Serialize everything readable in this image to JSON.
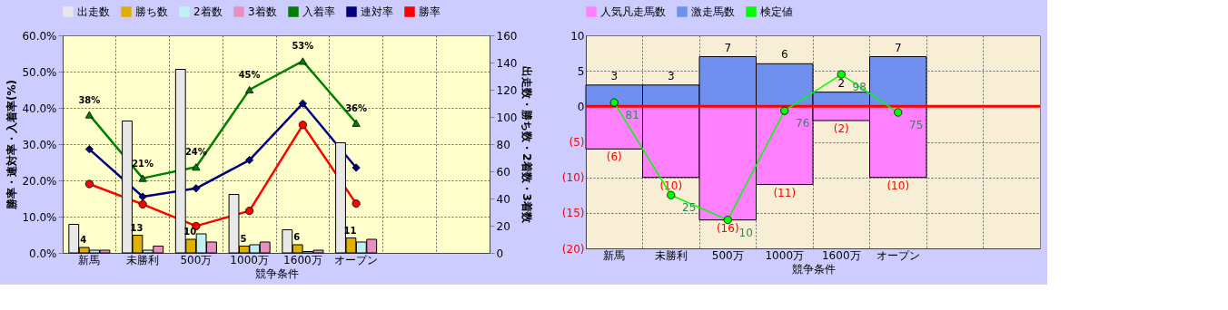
{
  "chart_data": [
    {
      "type": "bar",
      "categories": [
        "新馬",
        "未勝利",
        "500万",
        "1000万",
        "1600万",
        "オープン",
        null,
        null
      ],
      "xlabel": "競争条件",
      "ylabel": "勝率・連対率・入着率(%)",
      "y2label": "出走数・勝ち数・2着数・3着数",
      "ylim": [
        0,
        60
      ],
      "yticks": [
        {
          "value": 0,
          "label": "0.0%"
        },
        {
          "value": 10,
          "label": "10.0%"
        },
        {
          "value": 20,
          "label": "20.0%"
        },
        {
          "value": 30,
          "label": "30.0%"
        },
        {
          "value": 40,
          "label": "40.0%"
        },
        {
          "value": 50,
          "label": "50.0%"
        },
        {
          "value": 60,
          "label": "60.0%"
        }
      ],
      "y2lim": [
        0,
        160
      ],
      "y2ticks": [
        0,
        20,
        40,
        60,
        80,
        100,
        120,
        140,
        160
      ],
      "grid": true,
      "legend": "top",
      "series": [
        {
          "name": "出走数",
          "type": "bar",
          "axis": "y2",
          "color": "#e8e8e8",
          "values": [
            21,
            97,
            135,
            43,
            17,
            81,
            null,
            null
          ]
        },
        {
          "name": "勝ち数",
          "type": "bar",
          "axis": "y2",
          "color": "#e0b000",
          "values": [
            4,
            13,
            10,
            5,
            6,
            11,
            null,
            null
          ],
          "value_labels": [
            "4",
            "13",
            "10",
            "5",
            "6",
            "11",
            null,
            null
          ]
        },
        {
          "name": "2着数",
          "type": "bar",
          "axis": "y2",
          "color": "#c0f0f0",
          "values": [
            2,
            2,
            14,
            6,
            1,
            8,
            null,
            null
          ]
        },
        {
          "name": "3着数",
          "type": "bar",
          "axis": "y2",
          "color": "#e890c0",
          "values": [
            2,
            5,
            8,
            8,
            2,
            10,
            null,
            null
          ]
        },
        {
          "name": "入着率",
          "type": "line",
          "axis": "y",
          "color": "#008000",
          "marker": "triangle",
          "values": [
            38.1,
            20.6,
            23.7,
            45.0,
            52.9,
            35.8,
            null,
            null
          ],
          "value_labels": [
            "38%",
            "21%",
            "24%",
            "45%",
            "53%",
            "36%",
            null,
            null
          ]
        },
        {
          "name": "連対率",
          "type": "line",
          "axis": "y",
          "color": "#000080",
          "marker": "diamond",
          "values": [
            28.6,
            15.5,
            17.8,
            25.6,
            41.2,
            23.5,
            null,
            null
          ]
        },
        {
          "name": "勝率",
          "type": "line",
          "axis": "y",
          "color": "#ff0000",
          "marker": "circle",
          "values": [
            19.0,
            13.4,
            7.4,
            11.6,
            35.3,
            13.6,
            null,
            null
          ]
        }
      ]
    },
    {
      "type": "bar",
      "stacked": true,
      "categories": [
        "新馬",
        "未勝利",
        "500万",
        "1000万",
        "1600万",
        "オープン",
        null,
        null
      ],
      "xlabel": "競争条件",
      "ylim": [
        -20,
        10
      ],
      "yticks": [
        {
          "value": -20,
          "label": "(20)"
        },
        {
          "value": -15,
          "label": "(15)"
        },
        {
          "value": -10,
          "label": "(10)"
        },
        {
          "value": -5,
          "label": "(5)"
        },
        0,
        5,
        10
      ],
      "y2lim": [
        -7.2,
        121.6
      ],
      "grid": true,
      "legend": "top",
      "ref_lines": [
        {
          "axis": "y",
          "value": 0,
          "color": "#ff0000"
        }
      ],
      "series": [
        {
          "name": "人気凡走馬数",
          "type": "bar",
          "color": "#ff80ff",
          "values": [
            -6,
            -10,
            -16,
            -11,
            -2,
            -10,
            null,
            null
          ],
          "value_labels": [
            "(6)",
            "(10)",
            "(16)",
            "(11)",
            "(2)",
            "(10)",
            null,
            null
          ]
        },
        {
          "name": "激走馬数",
          "type": "bar",
          "color": "#7090f0",
          "values": [
            3,
            3,
            7,
            6,
            2,
            7,
            null,
            null
          ],
          "value_labels": [
            "3",
            "3",
            "7",
            "6",
            "2",
            "7",
            null,
            null
          ]
        },
        {
          "name": "検定値",
          "type": "line",
          "axis": "y2",
          "color": "#00ff00",
          "marker": "circle",
          "values": [
            81,
            25,
            10,
            76,
            98,
            75,
            null,
            null
          ],
          "value_labels": [
            "81",
            "25",
            "10",
            "76",
            "98",
            "75",
            null,
            null
          ]
        }
      ]
    }
  ]
}
